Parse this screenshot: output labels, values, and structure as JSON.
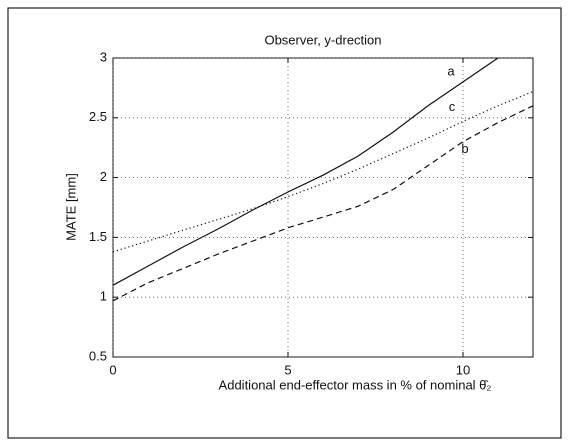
{
  "chart_data": {
    "type": "line",
    "title": "Observer,  y-drection",
    "xlabel": "Additional end-effector mass in % of  nominal θ̂₂",
    "ylabel": "MATE [mm]",
    "x": [
      0,
      1,
      2,
      3,
      4,
      5,
      6,
      7,
      8,
      9,
      10,
      11,
      12
    ],
    "series": [
      {
        "name": "a",
        "color": "#111111",
        "style": "solid",
        "values": [
          1.1,
          1.26,
          1.42,
          1.57,
          1.73,
          1.88,
          2.02,
          2.18,
          2.38,
          2.6,
          2.8,
          3.0,
          null
        ]
      },
      {
        "name": "c",
        "color": "#111111",
        "style": "dotted",
        "values": [
          1.38,
          1.47,
          1.56,
          1.65,
          1.74,
          1.84,
          1.95,
          2.07,
          2.2,
          2.33,
          2.47,
          2.6,
          2.72
        ]
      },
      {
        "name": "b",
        "color": "#111111",
        "style": "dashed",
        "values": [
          0.97,
          1.12,
          1.24,
          1.36,
          1.47,
          1.58,
          1.67,
          1.76,
          1.9,
          2.1,
          2.3,
          2.46,
          2.6
        ]
      }
    ],
    "xlim": [
      0,
      12
    ],
    "xticks": [
      0,
      5,
      10
    ],
    "ylim": [
      0.5,
      3
    ],
    "yticks": [
      0.5,
      1,
      1.5,
      2,
      2.5,
      3
    ],
    "grid": true
  }
}
